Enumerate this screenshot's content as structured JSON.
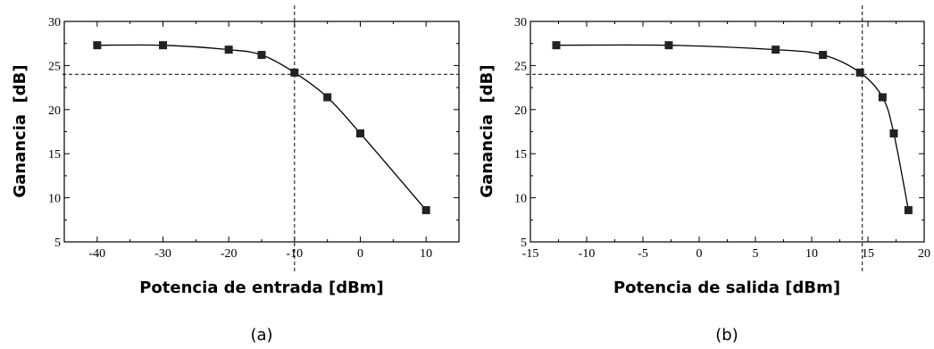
{
  "chart_data": [
    {
      "type": "line",
      "xlabel": "Potencia de entrada [dBm]",
      "ylabel": "Ganancia  [dB]",
      "caption": "(a)",
      "xlim": [
        -45,
        15
      ],
      "ylim": [
        5,
        30
      ],
      "xticks": [
        -40,
        -30,
        -20,
        -10,
        0,
        10
      ],
      "xtick_labels": [
        "-40",
        "-30",
        "-20",
        "-10",
        "0",
        "10"
      ],
      "yticks": [
        5,
        10,
        15,
        20,
        25,
        30
      ],
      "ytick_labels": [
        "5",
        "10",
        "15",
        "20",
        "25",
        "30"
      ],
      "grid": false,
      "marker": "square",
      "reference_lines": {
        "x": -10,
        "y": 24
      },
      "series": [
        {
          "x": [
            -40,
            -30,
            -20,
            -15,
            -10,
            -5,
            0,
            10
          ],
          "values": [
            27.3,
            27.3,
            26.8,
            26.2,
            24.2,
            21.4,
            17.3,
            8.6
          ]
        }
      ]
    },
    {
      "type": "line",
      "xlabel": "Potencia de salida [dBm]",
      "ylabel": "Ganancia  [dB]",
      "caption": "(b)",
      "xlim": [
        -15,
        20
      ],
      "ylim": [
        5,
        30
      ],
      "xticks": [
        -15,
        -10,
        -5,
        0,
        5,
        10,
        15,
        20
      ],
      "xtick_labels": [
        "-15",
        "-10",
        "-5",
        "0",
        "5",
        "10",
        "15",
        "20"
      ],
      "yticks": [
        5,
        10,
        15,
        20,
        25,
        30
      ],
      "ytick_labels": [
        "5",
        "10",
        "15",
        "20",
        "25",
        "30"
      ],
      "grid": false,
      "marker": "square",
      "reference_lines": {
        "x": 14.5,
        "y": 24
      },
      "series": [
        {
          "x": [
            -12.7,
            -2.7,
            6.8,
            11.0,
            14.3,
            16.3,
            17.3,
            18.6
          ],
          "values": [
            27.3,
            27.3,
            26.8,
            26.2,
            24.2,
            21.4,
            17.3,
            8.6
          ]
        }
      ]
    }
  ]
}
